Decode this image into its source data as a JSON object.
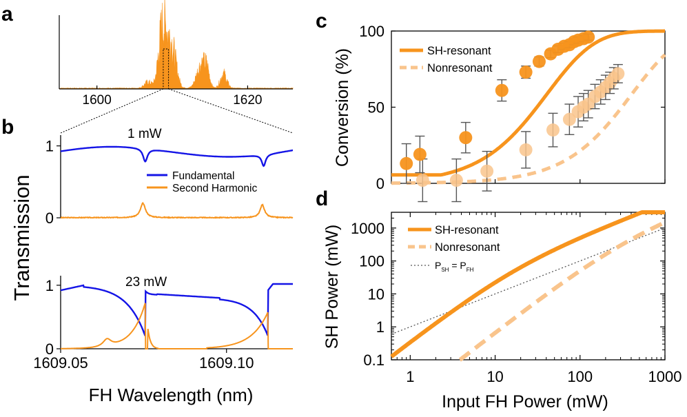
{
  "colors": {
    "fundamental": "#1414e6",
    "second_harmonic": "#f7941d",
    "sh_resonant": "#f7941d",
    "nonresonant": "#f9c48c",
    "errorbar": "#555555",
    "axis": "#000000",
    "dotted": "#555555"
  },
  "chart_data": [
    {
      "panel": "a",
      "type": "area",
      "title": "",
      "xlim": [
        1595,
        1626
      ],
      "xticks": [
        1600,
        1620
      ],
      "tick_labels": [
        "1600",
        "1620"
      ],
      "spectrum_peaks": [
        {
          "center": 1609.2,
          "height": 1.0,
          "width": 0.9
        },
        {
          "center": 1608.5,
          "height": 0.6,
          "width": 0.6
        },
        {
          "center": 1610.2,
          "height": 0.45,
          "width": 0.7
        },
        {
          "center": 1613.8,
          "height": 0.45,
          "width": 0.8
        },
        {
          "center": 1614.6,
          "height": 0.3,
          "width": 0.5
        },
        {
          "center": 1616.8,
          "height": 0.28,
          "width": 0.6
        },
        {
          "center": 1606.8,
          "height": 0.12,
          "width": 0.7
        }
      ],
      "zoom_window": [
        1608.8,
        1609.5
      ]
    },
    {
      "panel": "b",
      "type": "line",
      "xlabel": "FH Wavelength (nm)",
      "ylabel": "Transmission",
      "xlim": [
        1609.05,
        1609.12
      ],
      "xticks": [
        1609.05,
        1609.1
      ],
      "xtick_labels": [
        "1609.05",
        "1609.10"
      ],
      "ylim": [
        0,
        1.15
      ],
      "yticks": [
        0,
        1
      ],
      "ytick_labels": [
        "0",
        "1"
      ],
      "legend": [
        "Fundamental",
        "Second Harmonic"
      ],
      "subplots": [
        {
          "annotation": "1 mW"
        },
        {
          "annotation": "23 mW"
        }
      ]
    },
    {
      "panel": "c",
      "type": "line",
      "ylabel": "Conversion (%)",
      "xscale": "log",
      "xlim": [
        0.6,
        1000
      ],
      "ylim": [
        0,
        100
      ],
      "yticks": [
        0,
        50,
        100
      ],
      "ytick_labels": [
        "0",
        "50",
        "100"
      ],
      "legend": [
        "SH-resonant",
        "Nonresonant"
      ],
      "series": [
        {
          "name": "SH-resonant",
          "points": [
            [
              0.9,
              13,
              13
            ],
            [
              1.3,
              19,
              12
            ],
            [
              4.5,
              30,
              10
            ],
            [
              12,
              61,
              7
            ],
            [
              23,
              73,
              4
            ],
            [
              33,
              80,
              3
            ],
            [
              45,
              85,
              2.5
            ],
            [
              55,
              88,
              2.2
            ],
            [
              65,
              90,
              2
            ],
            [
              75,
              91,
              2
            ],
            [
              85,
              93,
              2
            ],
            [
              95,
              94,
              2
            ],
            [
              110,
              95,
              2
            ],
            [
              125,
              96,
              2
            ]
          ]
        },
        {
          "name": "Nonresonant",
          "points": [
            [
              1.4,
              2,
              14
            ],
            [
              3.5,
              2,
              14
            ],
            [
              8,
              8,
              13
            ],
            [
              23,
              22,
              12
            ],
            [
              48,
              35,
              11
            ],
            [
              75,
              42,
              10
            ],
            [
              95,
              47,
              10
            ],
            [
              110,
              50,
              9
            ],
            [
              125,
              52,
              9
            ],
            [
              150,
              57,
              8
            ],
            [
              175,
              60,
              8
            ],
            [
              200,
              63,
              8
            ],
            [
              225,
              66,
              7
            ],
            [
              250,
              69,
              7
            ],
            [
              280,
              72,
              6
            ]
          ]
        }
      ]
    },
    {
      "panel": "d",
      "type": "line",
      "xlabel": "Input FH Power (mW)",
      "ylabel": "SH Power (mW)",
      "xscale": "log",
      "yscale": "log",
      "xlim": [
        0.6,
        1000
      ],
      "ylim": [
        0.1,
        3000
      ],
      "xticks": [
        1,
        10,
        100,
        1000
      ],
      "xtick_labels": [
        "1",
        "10",
        "100",
        "1000"
      ],
      "yticks": [
        0.1,
        1,
        10,
        100,
        1000
      ],
      "ytick_labels": [
        "0.1",
        "1",
        "10",
        "100",
        "1000"
      ],
      "legend": [
        "SH-resonant",
        "Nonresonant",
        "P = P"
      ],
      "legend_subscripts": [
        "SH",
        "FH"
      ]
    }
  ],
  "panel_labels": [
    "a",
    "b",
    "c",
    "d"
  ]
}
